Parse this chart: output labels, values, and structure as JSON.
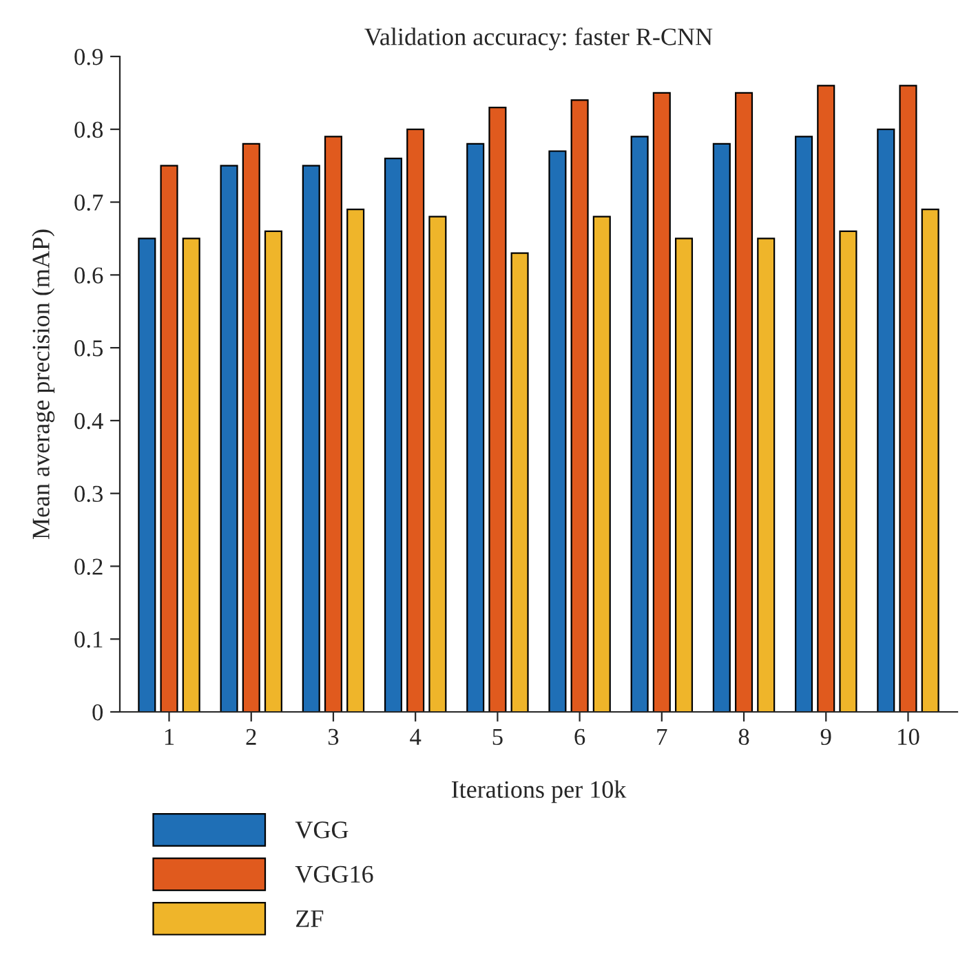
{
  "chart_data": {
    "type": "bar",
    "title": "Validation accuracy: faster R-CNN",
    "xlabel": "Iterations per 10k",
    "ylabel": "Mean average precision (mAP)",
    "categories": [
      "1",
      "2",
      "3",
      "4",
      "5",
      "6",
      "7",
      "8",
      "9",
      "10"
    ],
    "series": [
      {
        "name": "VGG",
        "color": "#1f6fb6",
        "values": [
          0.65,
          0.75,
          0.75,
          0.76,
          0.78,
          0.77,
          0.79,
          0.78,
          0.79,
          0.8
        ]
      },
      {
        "name": "VGG16",
        "color": "#e05a1e",
        "values": [
          0.75,
          0.78,
          0.79,
          0.8,
          0.83,
          0.84,
          0.85,
          0.85,
          0.86,
          0.86
        ]
      },
      {
        "name": "ZF",
        "color": "#efb52a",
        "values": [
          0.65,
          0.66,
          0.69,
          0.68,
          0.63,
          0.68,
          0.65,
          0.65,
          0.66,
          0.69
        ]
      }
    ],
    "ylim": [
      0,
      0.9
    ],
    "yticks": [
      {
        "value": 0,
        "label": "0"
      },
      0.1,
      0.2,
      0.3,
      0.4,
      0.5,
      0.6,
      0.7,
      0.8,
      0.9
    ],
    "grid": false,
    "legend": "bottom left"
  }
}
